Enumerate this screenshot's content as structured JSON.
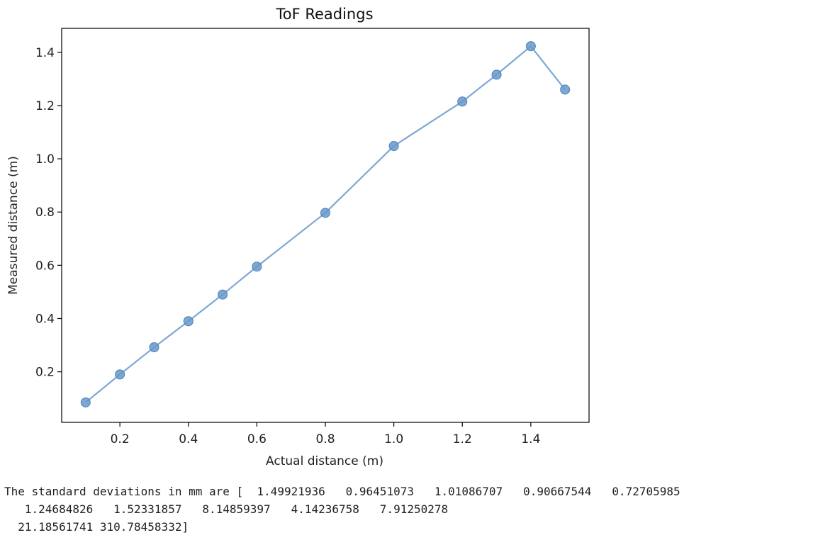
{
  "chart_data": {
    "type": "line",
    "title": "ToF Readings",
    "xlabel": "Actual distance (m)",
    "ylabel": "Measured distance (m)",
    "x": [
      0.1,
      0.2,
      0.3,
      0.4,
      0.5,
      0.6,
      0.8,
      1.0,
      1.2,
      1.3,
      1.4,
      1.5
    ],
    "y": [
      0.085,
      0.19,
      0.292,
      0.39,
      0.49,
      0.595,
      0.797,
      1.048,
      1.215,
      1.316,
      1.423,
      1.26
    ],
    "xlim": [
      0.03,
      1.57
    ],
    "ylim": [
      0.01,
      1.49
    ],
    "xticks": [
      0.2,
      0.4,
      0.6,
      0.8,
      1.0,
      1.2,
      1.4
    ],
    "yticks": [
      0.2,
      0.4,
      0.6,
      0.8,
      1.0,
      1.2,
      1.4
    ],
    "xtick_labels": [
      "0.2",
      "0.4",
      "0.6",
      "0.8",
      "1.0",
      "1.2",
      "1.4"
    ],
    "ytick_labels": [
      "0.2",
      "0.4",
      "0.6",
      "0.8",
      "1.0",
      "1.2",
      "1.4"
    ],
    "color": "#6699cc",
    "marker": "circle",
    "grid": false,
    "legend": "none"
  },
  "output": {
    "lines": [
      "The standard deviations in mm are [  1.49921936   0.96451073   1.01086707   0.90667544   0.72705985",
      "   1.24684826   1.52331857   8.14859397   4.14236758   7.91250278",
      "  21.18561741 310.78458332]"
    ]
  }
}
